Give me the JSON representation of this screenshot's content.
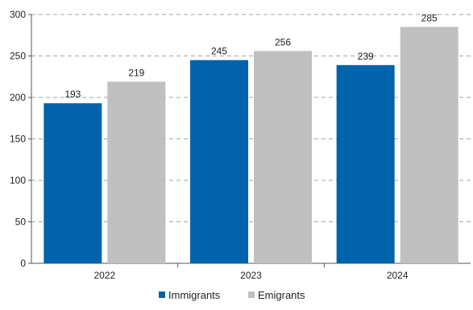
{
  "chart_data": {
    "type": "bar",
    "categories": [
      "2022",
      "2023",
      "2024"
    ],
    "series": [
      {
        "name": "Immigrants",
        "values": [
          193,
          245,
          239
        ],
        "color": "#0063ac"
      },
      {
        "name": "Emigrants",
        "values": [
          219,
          256,
          285
        ],
        "color": "#c0c0c0"
      }
    ],
    "ylim": [
      0,
      300
    ],
    "yticks": [
      "0",
      "50",
      "100",
      "150",
      "200",
      "250",
      "300"
    ],
    "grid": "horizontal dashed",
    "legend": "bottom-center",
    "title": "",
    "xlabel": "",
    "ylabel": ""
  }
}
